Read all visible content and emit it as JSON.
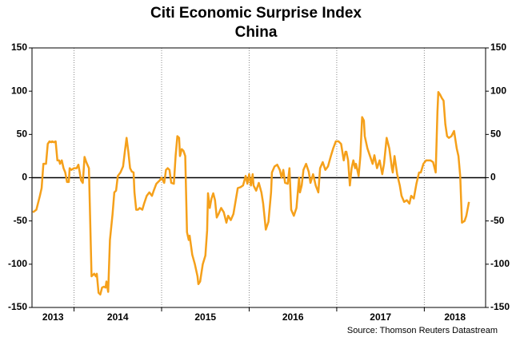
{
  "chart_data": {
    "type": "line",
    "title": "Citi Economic Surprise Index",
    "subtitle": "China",
    "source": "Source: Thomson Reuters Datastream",
    "xlim": [
      2013.52,
      2018.7
    ],
    "xticks": [
      2014,
      2015,
      2016,
      2017,
      2018
    ],
    "year_labels": [
      2013,
      2014,
      2015,
      2016,
      2017,
      2018
    ],
    "ylim": [
      -150,
      150
    ],
    "yticks": [
      -150,
      -100,
      -50,
      0,
      50,
      100,
      150
    ],
    "y2lim": [
      -150,
      150
    ],
    "y2ticks": [
      -150,
      -100,
      -50,
      0,
      50,
      100,
      150
    ],
    "zero_line": true,
    "x_grid": "dotted",
    "series": [
      {
        "color": "#f5a01a",
        "x": [
          2013.53,
          2013.57,
          2013.61,
          2013.63,
          2013.65,
          2013.68,
          2013.7,
          2013.72,
          2013.74,
          2013.75,
          2013.77,
          2013.79,
          2013.81,
          2013.83,
          2013.84,
          2013.86,
          2013.88,
          2013.9,
          2013.92,
          2013.94,
          2013.95,
          2013.97,
          2014.0,
          2014.03,
          2014.05,
          2014.08,
          2014.1,
          2014.12,
          2014.14,
          2014.17,
          2014.2,
          2014.23,
          2014.25,
          2014.26,
          2014.28,
          2014.3,
          2014.32,
          2014.34,
          2014.36,
          2014.37,
          2014.39,
          2014.41,
          2014.44,
          2014.46,
          2014.48,
          2014.5,
          2014.53,
          2014.56,
          2014.58,
          2014.6,
          2014.62,
          2014.64,
          2014.66,
          2014.68,
          2014.69,
          2014.71,
          2014.73,
          2014.75,
          2014.78,
          2014.8,
          2014.83,
          2014.86,
          2014.89,
          2014.91,
          2014.94,
          2014.98,
          2015.0,
          2015.03,
          2015.05,
          2015.07,
          2015.09,
          2015.11,
          2015.14,
          2015.16,
          2015.18,
          2015.2,
          2015.21,
          2015.23,
          2015.25,
          2015.27,
          2015.29,
          2015.31,
          2015.32,
          2015.35,
          2015.38,
          2015.41,
          2015.42,
          2015.44,
          2015.47,
          2015.5,
          2015.52,
          2015.53,
          2015.55,
          2015.57,
          2015.59,
          2015.61,
          2015.63,
          2015.65,
          2015.68,
          2015.71,
          2015.74,
          2015.76,
          2015.79,
          2015.82,
          2015.84,
          2015.87,
          2015.9,
          2015.93,
          2015.96,
          2015.98,
          2016.0,
          2016.02,
          2016.04,
          2016.05,
          2016.08,
          2016.11,
          2016.14,
          2016.16,
          2016.19,
          2016.22,
          2016.25,
          2016.26,
          2016.29,
          2016.32,
          2016.35,
          2016.37,
          2016.39,
          2016.41,
          2016.44,
          2016.46,
          2016.48,
          2016.51,
          2016.54,
          2016.57,
          2016.58,
          2016.6,
          2016.62,
          2016.65,
          2016.68,
          2016.7,
          2016.73,
          2016.76,
          2016.79,
          2016.81,
          2016.84,
          2016.87,
          2016.9,
          2016.93,
          2016.96,
          2016.99,
          2017.02,
          2017.05,
          2017.08,
          2017.1,
          2017.11,
          2017.13,
          2017.15,
          2017.17,
          2017.19,
          2017.21,
          2017.22,
          2017.25,
          2017.27,
          2017.29,
          2017.31,
          2017.32,
          2017.35,
          2017.38,
          2017.41,
          2017.43,
          2017.46,
          2017.49,
          2017.52,
          2017.54,
          2017.57,
          2017.6,
          2017.63,
          2017.64,
          2017.66,
          2017.69,
          2017.72,
          2017.74,
          2017.77,
          2017.8,
          2017.83,
          2017.85,
          2017.88,
          2017.91,
          2017.94,
          2017.96,
          2017.99,
          2018.02,
          2018.05,
          2018.07,
          2018.1,
          2018.13,
          2018.15,
          2018.16,
          2018.18,
          2018.2,
          2018.22,
          2018.24,
          2018.26,
          2018.28,
          2018.31,
          2018.34,
          2018.37,
          2018.39,
          2018.41,
          2018.43,
          2018.46,
          2018.48,
          2018.51
        ],
        "values": [
          -40,
          -37,
          -21,
          -12,
          16,
          16,
          39,
          42,
          41,
          42,
          41,
          42,
          20,
          20,
          16,
          20,
          11,
          6,
          -5,
          -5,
          11,
          9,
          11,
          11,
          15,
          -3,
          -6,
          24,
          18,
          11,
          -114,
          -111,
          -114,
          -111,
          -133,
          -135,
          -127,
          -126,
          -127,
          -120,
          -132,
          -72,
          -42,
          -17,
          -15,
          2,
          6,
          13,
          30,
          46,
          30,
          11,
          7,
          6,
          -17,
          -37,
          -37,
          -35,
          -37,
          -30,
          -21,
          -17,
          -21,
          -15,
          -7,
          -3,
          0,
          -6,
          9,
          11,
          9,
          -6,
          -7,
          25,
          48,
          46,
          25,
          33,
          31,
          25,
          -63,
          -72,
          -67,
          -89,
          -100,
          -114,
          -123,
          -120,
          -100,
          -90,
          -61,
          -18,
          -35,
          -24,
          -18,
          -26,
          -46,
          -42,
          -35,
          -40,
          -52,
          -44,
          -49,
          -42,
          -30,
          -12,
          -11,
          -9,
          2,
          -7,
          4,
          -9,
          4,
          -9,
          -15,
          -6,
          -17,
          -30,
          -60,
          -51,
          -17,
          6,
          13,
          15,
          9,
          0,
          9,
          -6,
          -7,
          11,
          -37,
          -44,
          -35,
          0,
          -17,
          -9,
          9,
          16,
          7,
          -6,
          4,
          -9,
          -17,
          11,
          18,
          9,
          13,
          24,
          34,
          42,
          42,
          39,
          20,
          30,
          30,
          20,
          -9,
          11,
          20,
          11,
          16,
          2,
          25,
          70,
          66,
          48,
          34,
          25,
          16,
          26,
          11,
          20,
          4,
          16,
          46,
          34,
          11,
          6,
          25,
          4,
          -9,
          -21,
          -28,
          -26,
          -30,
          -21,
          -24,
          -7,
          6,
          6,
          16,
          20,
          20,
          20,
          18,
          6,
          76,
          99,
          96,
          92,
          89,
          62,
          48,
          46,
          48,
          54,
          34,
          25,
          2,
          -52,
          -50,
          -44,
          -28
        ]
      }
    ]
  }
}
